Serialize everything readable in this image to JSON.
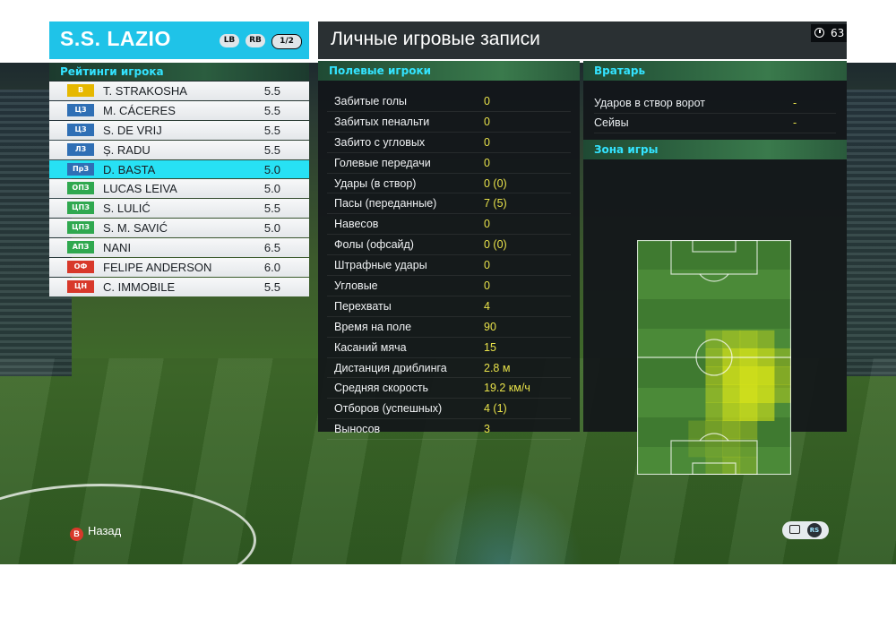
{
  "team": {
    "name": "S.S. LAZIO",
    "btn_lb": "LB",
    "btn_rb": "RB",
    "page": "1/2",
    "ratings_label": "Рейтинги игрока"
  },
  "players": [
    {
      "pos": "В",
      "pos_color": "#e6b800",
      "name": "T. STRAKOSHA",
      "rating": "5.5"
    },
    {
      "pos": "ЦЗ",
      "pos_color": "#2f6fb5",
      "name": "M. CÁCERES",
      "rating": "5.5"
    },
    {
      "pos": "ЦЗ",
      "pos_color": "#2f6fb5",
      "name": "S. DE VRIJ",
      "rating": "5.5"
    },
    {
      "pos": "ЛЗ",
      "pos_color": "#2f6fb5",
      "name": "Ș. RADU",
      "rating": "5.5"
    },
    {
      "pos": "ПрЗ",
      "pos_color": "#2f6fb5",
      "name": "D. BASTA",
      "rating": "5.0",
      "selected": true
    },
    {
      "pos": "ОПЗ",
      "pos_color": "#2fa84f",
      "name": "LUCAS LEIVA",
      "rating": "5.0"
    },
    {
      "pos": "ЦПЗ",
      "pos_color": "#2fa84f",
      "name": "S. LULIĆ",
      "rating": "5.5"
    },
    {
      "pos": "ЦПЗ",
      "pos_color": "#2fa84f",
      "name": "S. M. SAVIĆ",
      "rating": "5.0"
    },
    {
      "pos": "АПЗ",
      "pos_color": "#2fa84f",
      "name": "NANI",
      "rating": "6.5"
    },
    {
      "pos": "ОФ",
      "pos_color": "#d8392b",
      "name": "FELIPE ANDERSON",
      "rating": "6.0"
    },
    {
      "pos": "ЦН",
      "pos_color": "#d8392b",
      "name": "C. IMMOBILE",
      "rating": "5.5"
    }
  ],
  "page_title": "Личные игровые записи",
  "timer": "63",
  "field_players": {
    "header": "Полевые игроки",
    "stats": [
      {
        "label": "Забитые голы",
        "value": "0"
      },
      {
        "label": "Забитых пенальти",
        "value": "0"
      },
      {
        "label": "Забито с угловых",
        "value": "0"
      },
      {
        "label": "Голевые передачи",
        "value": "0"
      },
      {
        "label": "Удары (в створ)",
        "value": "0 (0)"
      },
      {
        "label": "Пасы (переданные)",
        "value": "7 (5)"
      },
      {
        "label": "Навесов",
        "value": "0"
      },
      {
        "label": "Фолы (офсайд)",
        "value": "0 (0)"
      },
      {
        "label": "Штрафные удары",
        "value": "0"
      },
      {
        "label": "Угловые",
        "value": "0"
      },
      {
        "label": "Перехваты",
        "value": "4"
      },
      {
        "label": "Время на поле",
        "value": "90"
      },
      {
        "label": "Касаний мяча",
        "value": "15"
      },
      {
        "label": "Дистанция дриблинга",
        "value": "2.8 м"
      },
      {
        "label": "Средняя скорость",
        "value": "19.2 км/ч"
      },
      {
        "label": "Отборов (успешных)",
        "value": "4 (1)"
      },
      {
        "label": "Выносов",
        "value": "3"
      }
    ]
  },
  "goalkeeper": {
    "header": "Вратарь",
    "stats": [
      {
        "label": "Ударов в створ ворот",
        "value": "-"
      },
      {
        "label": "Сейвы",
        "value": "-"
      }
    ]
  },
  "zone": {
    "header": "Зона игры",
    "heat_color": "#d4e21a"
  },
  "controls": {
    "back_key": "B",
    "back_label": "Назад",
    "rs_label": "RS"
  }
}
